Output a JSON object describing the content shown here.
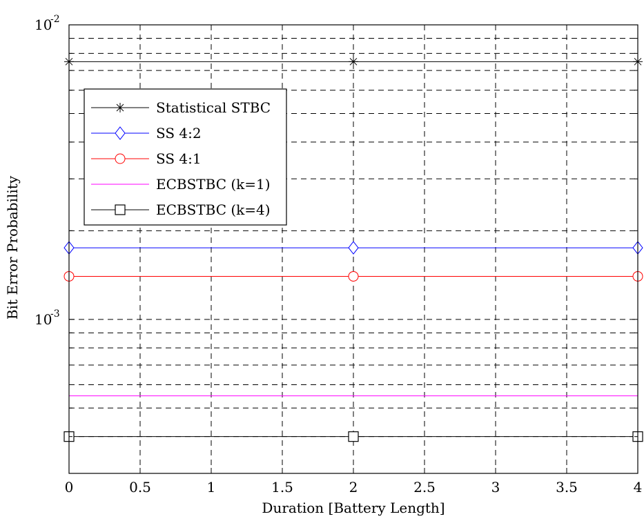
{
  "chart_data": {
    "type": "line",
    "title": "",
    "xlabel": "Duration [Battery Length]",
    "ylabel": "Bit Error Probability",
    "xlim": [
      0,
      4
    ],
    "ylim": [
      0.0003,
      0.01
    ],
    "yscale": "log",
    "grid": true,
    "legend_position": "upper-left",
    "x_ticks": [
      0,
      0.5,
      1,
      1.5,
      2,
      2.5,
      3,
      3.5,
      4
    ],
    "x_tick_labels": [
      "0",
      "0.5",
      "1",
      "1.5",
      "2",
      "2.5",
      "3",
      "3.5",
      "4"
    ],
    "y_tick_labels": [
      {
        "value": 0.001,
        "base": "10",
        "exponent": "-3"
      },
      {
        "value": 0.01,
        "base": "10",
        "exponent": "-2"
      }
    ],
    "x": [
      0,
      2,
      4
    ],
    "series": [
      {
        "name": "Statistical STBC",
        "values": [
          0.0075,
          0.0075,
          0.0075
        ],
        "color": "#000000",
        "marker": "asterisk"
      },
      {
        "name": "SS 4:2",
        "values": [
          0.00175,
          0.00175,
          0.00175
        ],
        "color": "#0000ff",
        "marker": "diamond"
      },
      {
        "name": "SS 4:1",
        "values": [
          0.0014,
          0.0014,
          0.0014
        ],
        "color": "#ff0000",
        "marker": "circle"
      },
      {
        "name": "ECBSTBC (k=1)",
        "values": [
          0.00055,
          0.00055,
          0.00055
        ],
        "color": "#ff00ff",
        "marker": "none"
      },
      {
        "name": "ECBSTBC (k=4)",
        "values": [
          0.0004,
          0.0004,
          0.0004
        ],
        "color": "#000000",
        "marker": "square"
      }
    ]
  }
}
